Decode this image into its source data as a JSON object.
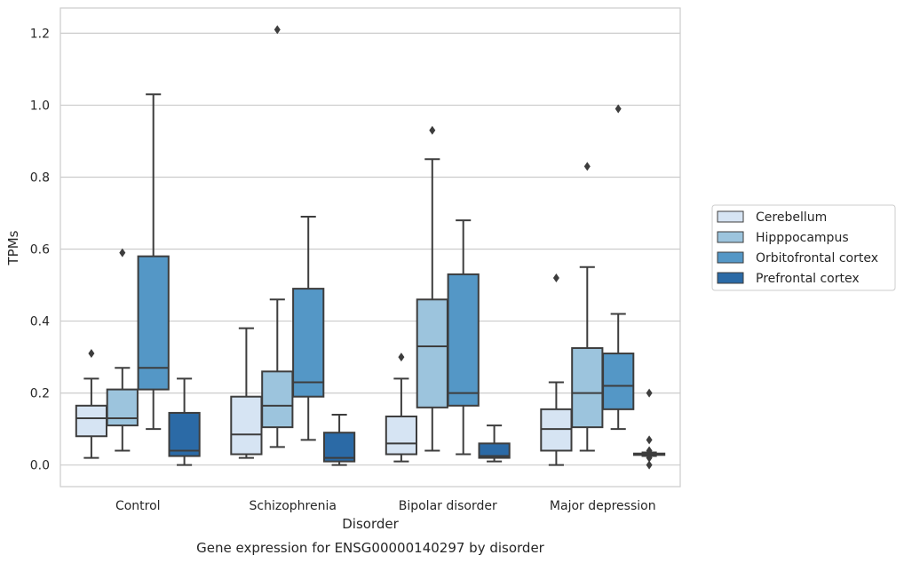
{
  "chart_data": {
    "type": "boxplot",
    "title": "",
    "xlabel": "Disorder",
    "ylabel": "TPMs",
    "caption": "Gene expression for ENSG00000140297 by disorder",
    "ylim": [
      -0.06,
      1.27
    ],
    "yticks": [
      0.0,
      0.2,
      0.4,
      0.6,
      0.8,
      1.0,
      1.2
    ],
    "ytick_labels": [
      "0.0",
      "0.2",
      "0.4",
      "0.6",
      "0.8",
      "1.0",
      "1.2"
    ],
    "grid": "horizontal",
    "legend_position": "right",
    "categories": [
      "Control",
      "Schizophrenia",
      "Bipolar disorder",
      "Major depression"
    ],
    "series": [
      {
        "name": "Cerebellum",
        "color": "#d6e4f3",
        "boxes": [
          {
            "whislo": 0.02,
            "q1": 0.08,
            "med": 0.13,
            "q3": 0.165,
            "whishi": 0.24,
            "fliers": [
              0.31
            ]
          },
          {
            "whislo": 0.02,
            "q1": 0.03,
            "med": 0.085,
            "q3": 0.19,
            "whishi": 0.38,
            "fliers": []
          },
          {
            "whislo": 0.01,
            "q1": 0.03,
            "med": 0.06,
            "q3": 0.135,
            "whishi": 0.24,
            "fliers": [
              0.3
            ]
          },
          {
            "whislo": 0.0,
            "q1": 0.04,
            "med": 0.1,
            "q3": 0.155,
            "whishi": 0.23,
            "fliers": [
              0.52
            ]
          }
        ]
      },
      {
        "name": "Hipppocampus",
        "color": "#9cc4dd",
        "boxes": [
          {
            "whislo": 0.04,
            "q1": 0.11,
            "med": 0.13,
            "q3": 0.21,
            "whishi": 0.27,
            "fliers": [
              0.59
            ]
          },
          {
            "whislo": 0.05,
            "q1": 0.105,
            "med": 0.165,
            "q3": 0.26,
            "whishi": 0.46,
            "fliers": [
              1.21
            ]
          },
          {
            "whislo": 0.04,
            "q1": 0.16,
            "med": 0.33,
            "q3": 0.46,
            "whishi": 0.85,
            "fliers": [
              0.93
            ]
          },
          {
            "whislo": 0.04,
            "q1": 0.105,
            "med": 0.2,
            "q3": 0.325,
            "whishi": 0.55,
            "fliers": [
              0.83
            ]
          }
        ]
      },
      {
        "name": "Orbitofrontal cortex",
        "color": "#5497c6",
        "boxes": [
          {
            "whislo": 0.1,
            "q1": 0.21,
            "med": 0.27,
            "q3": 0.58,
            "whishi": 1.03,
            "fliers": []
          },
          {
            "whislo": 0.07,
            "q1": 0.19,
            "med": 0.23,
            "q3": 0.49,
            "whishi": 0.69,
            "fliers": []
          },
          {
            "whislo": 0.03,
            "q1": 0.165,
            "med": 0.2,
            "q3": 0.53,
            "whishi": 0.68,
            "fliers": []
          },
          {
            "whislo": 0.1,
            "q1": 0.155,
            "med": 0.22,
            "q3": 0.31,
            "whishi": 0.42,
            "fliers": [
              0.99
            ]
          }
        ]
      },
      {
        "name": "Prefrontal cortex",
        "color": "#2b6aa6",
        "boxes": [
          {
            "whislo": 0.0,
            "q1": 0.025,
            "med": 0.04,
            "q3": 0.145,
            "whishi": 0.24,
            "fliers": []
          },
          {
            "whislo": 0.0,
            "q1": 0.01,
            "med": 0.02,
            "q3": 0.09,
            "whishi": 0.14,
            "fliers": []
          },
          {
            "whislo": 0.01,
            "q1": 0.02,
            "med": 0.025,
            "q3": 0.06,
            "whishi": 0.11,
            "fliers": []
          },
          {
            "whislo": 0.025,
            "q1": 0.028,
            "med": 0.03,
            "q3": 0.032,
            "whishi": 0.035,
            "fliers": [
              0.2,
              0.07,
              0.04,
              0.02,
              0.0
            ]
          }
        ]
      }
    ]
  }
}
